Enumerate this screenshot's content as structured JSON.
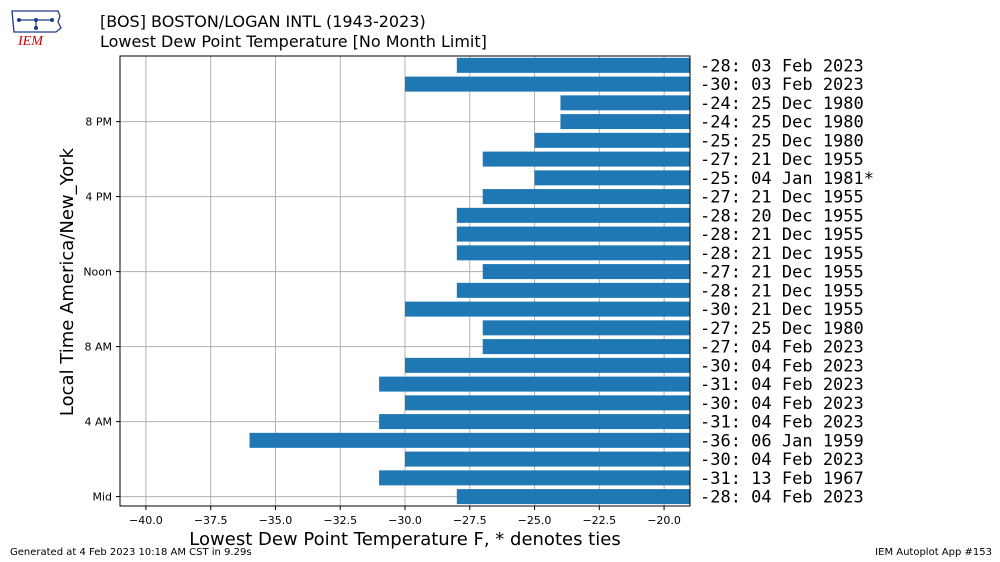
{
  "header": {
    "title": "[BOS] BOSTON/LOGAN INTL (1943-2023)",
    "subtitle": "Lowest Dew Point Temperature [No Month Limit]"
  },
  "logo": {
    "text": "IEM",
    "icon": "iowa-state-outline-logo"
  },
  "footer": {
    "generated": "Generated at 4 Feb 2023 10:18 AM CST in 9.29s",
    "app": "IEM Autoplot App #153"
  },
  "chart_data": {
    "type": "bar",
    "orientation": "horizontal",
    "title": "[BOS] BOSTON/LOGAN INTL (1943-2023)",
    "subtitle": "Lowest Dew Point Temperature [No Month Limit]",
    "xlabel": "Lowest Dew Point Temperature F, * denotes ties",
    "ylabel": "Local Time America/New_York",
    "xlim": [
      -41,
      -19
    ],
    "x_ticks": [
      -40,
      -37.5,
      -35,
      -32.5,
      -30,
      -27.5,
      -25,
      -22.5,
      -20
    ],
    "x_tick_labels": [
      "−40.0",
      "−37.5",
      "−35.0",
      "−32.5",
      "−30.0",
      "−27.5",
      "−25.0",
      "−22.5",
      "−20.0"
    ],
    "y_ticks": [
      0,
      4,
      8,
      12,
      16,
      20
    ],
    "y_tick_labels": [
      "Mid",
      "4 AM",
      "8 AM",
      "Noon",
      "4 PM",
      "8 PM"
    ],
    "grid": true,
    "bar_color": "#1f77b4",
    "hours": [
      0,
      1,
      2,
      3,
      4,
      5,
      6,
      7,
      8,
      9,
      10,
      11,
      12,
      13,
      14,
      15,
      16,
      17,
      18,
      19,
      20,
      21,
      22,
      23
    ],
    "values": [
      -28,
      -31,
      -30,
      -36,
      -31,
      -30,
      -31,
      -30,
      -27,
      -27,
      -30,
      -28,
      -27,
      -28,
      -28,
      -28,
      -27,
      -25,
      -27,
      -25,
      -24,
      -24,
      -30,
      -28
    ],
    "labels": [
      "-28: 04 Feb 2023",
      "-31: 13 Feb 1967",
      "-30: 04 Feb 2023",
      "-36: 06 Jan 1959",
      "-31: 04 Feb 2023",
      "-30: 04 Feb 2023",
      "-31: 04 Feb 2023",
      "-30: 04 Feb 2023",
      "-27: 04 Feb 2023",
      "-27: 25 Dec 1980",
      "-30: 21 Dec 1955",
      "-28: 21 Dec 1955",
      "-27: 21 Dec 1955",
      "-28: 21 Dec 1955",
      "-28: 21 Dec 1955",
      "-28: 20 Dec 1955",
      "-27: 21 Dec 1955",
      "-25: 04 Jan 1981*",
      "-27: 21 Dec 1955",
      "-25: 25 Dec 1980",
      "-24: 25 Dec 1980",
      "-24: 25 Dec 1980",
      "-30: 03 Feb 2023",
      "-28: 03 Feb 2023"
    ]
  }
}
